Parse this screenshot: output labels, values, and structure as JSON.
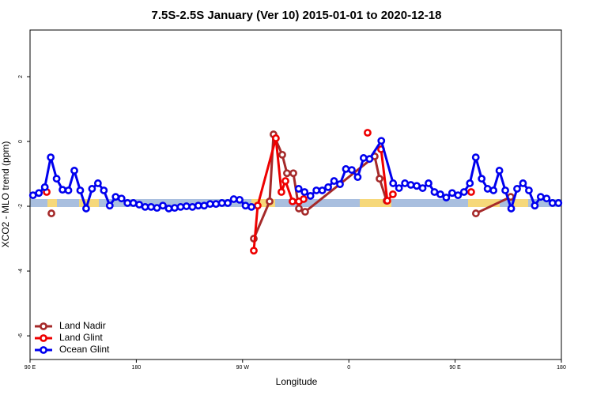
{
  "chart_data": {
    "type": "line",
    "title": "7.5S-2.5S January (Ver 10)   2015-01-01 to 2020-12-18",
    "x_label": "Longitude",
    "y_label": "XCO2 - MLO trend (ppm)",
    "xlim": [
      90,
      540
    ],
    "ylim": [
      -6.73,
      3.44
    ],
    "xticks": [
      {
        "value": 90,
        "label": "90 E"
      },
      180,
      {
        "value": 270,
        "label": "90 W"
      },
      {
        "value": 360,
        "label": "0"
      },
      {
        "value": 450,
        "label": "90 E"
      },
      {
        "value": 540,
        "label": "180"
      }
    ],
    "yticks": [
      -6,
      -4,
      -2,
      0,
      2
    ],
    "legend": "bottom-left",
    "series": [
      {
        "name": "Land Nadir",
        "color": "#a52a2a",
        "x": [
          108.1,
          279.5,
          279.5,
          292.9,
          296.2,
          303.6,
          307.6,
          313.0,
          317.7,
          323.0,
          381.9,
          386.0,
          392.0,
          392.0,
          467.6,
          497.1
        ],
        "values": [
          -2.22,
          null,
          -3.0,
          -1.85,
          0.22,
          -0.41,
          -0.98,
          -0.98,
          -2.07,
          -2.17,
          -0.46,
          -1.15,
          -1.83,
          null,
          -2.22,
          -1.71
        ]
      },
      {
        "name": "Land Glint",
        "color": "#ee0000",
        "x": [
          104.1,
          104.1,
          279.5,
          282.8,
          298.2,
          302.9,
          306.3,
          312.3,
          317.7,
          321.7,
          321.7,
          375.9,
          375.9,
          387.3,
          392.6,
          397.3,
          397.3,
          463.6
        ],
        "values": [
          -1.56,
          null,
          -3.37,
          -1.98,
          0.1,
          -1.56,
          -1.22,
          -1.85,
          -1.85,
          -1.78,
          null,
          0.27,
          null,
          -0.24,
          -1.83,
          -1.63,
          null,
          -1.56
        ]
      },
      {
        "name": "Ocean Glint",
        "color": "#0000ee",
        "x": [
          92.5,
          97.5,
          102.5,
          107.5,
          112.5,
          117.5,
          122.5,
          127.5,
          132.5,
          137.5,
          142.5,
          147.5,
          152.5,
          157.5,
          162.5,
          167.5,
          172.5,
          177.5,
          182.5,
          187.5,
          192.5,
          197.5,
          202.5,
          207.5,
          212.5,
          217.5,
          222.5,
          227.5,
          232.5,
          237.5,
          242.5,
          247.5,
          252.5,
          257.5,
          262.5,
          267.5,
          272.5,
          277.5,
          297.5,
          317.5,
          322.5,
          327.5,
          332.5,
          337.5,
          342.5,
          347.5,
          352.5,
          357.5,
          362.5,
          367.5,
          372.5,
          377.5,
          387.5,
          397.5,
          402.5,
          407.5,
          412.5,
          417.5,
          422.5,
          427.5,
          432.5,
          437.5,
          442.5,
          447.5,
          452.5,
          457.5,
          462.5,
          467.5,
          472.5,
          477.5,
          482.5,
          487.5,
          492.5,
          497.5,
          502.5,
          507.5,
          512.5,
          517.5,
          522.5,
          527.5,
          532.5,
          537.5
        ],
        "values": [
          -1.66,
          -1.59,
          -1.41,
          -0.49,
          -1.15,
          -1.49,
          -1.51,
          -0.9,
          -1.51,
          -2.07,
          -1.46,
          -1.29,
          -1.51,
          -1.98,
          -1.71,
          -1.76,
          -1.9,
          -1.9,
          -1.95,
          -2.02,
          -2.02,
          -2.05,
          -1.98,
          -2.07,
          -2.05,
          -2.02,
          -2.0,
          -2.02,
          -1.98,
          -1.98,
          -1.93,
          -1.93,
          -1.9,
          -1.9,
          -1.78,
          -1.8,
          -1.98,
          -2.02,
          null,
          -1.46,
          -1.56,
          -1.68,
          -1.51,
          -1.51,
          -1.41,
          -1.22,
          -1.32,
          -0.85,
          -0.88,
          -1.1,
          -0.51,
          -0.54,
          0.02,
          -1.29,
          -1.44,
          -1.29,
          -1.34,
          -1.37,
          -1.44,
          -1.29,
          -1.56,
          -1.63,
          -1.73,
          -1.59,
          -1.66,
          -1.56,
          -1.29,
          -0.49,
          -1.15,
          -1.46,
          -1.51,
          -0.9,
          -1.51,
          -2.07,
          -1.46,
          -1.29,
          -1.51,
          -1.98,
          -1.71,
          -1.76,
          -1.9,
          -1.9
        ]
      }
    ]
  }
}
